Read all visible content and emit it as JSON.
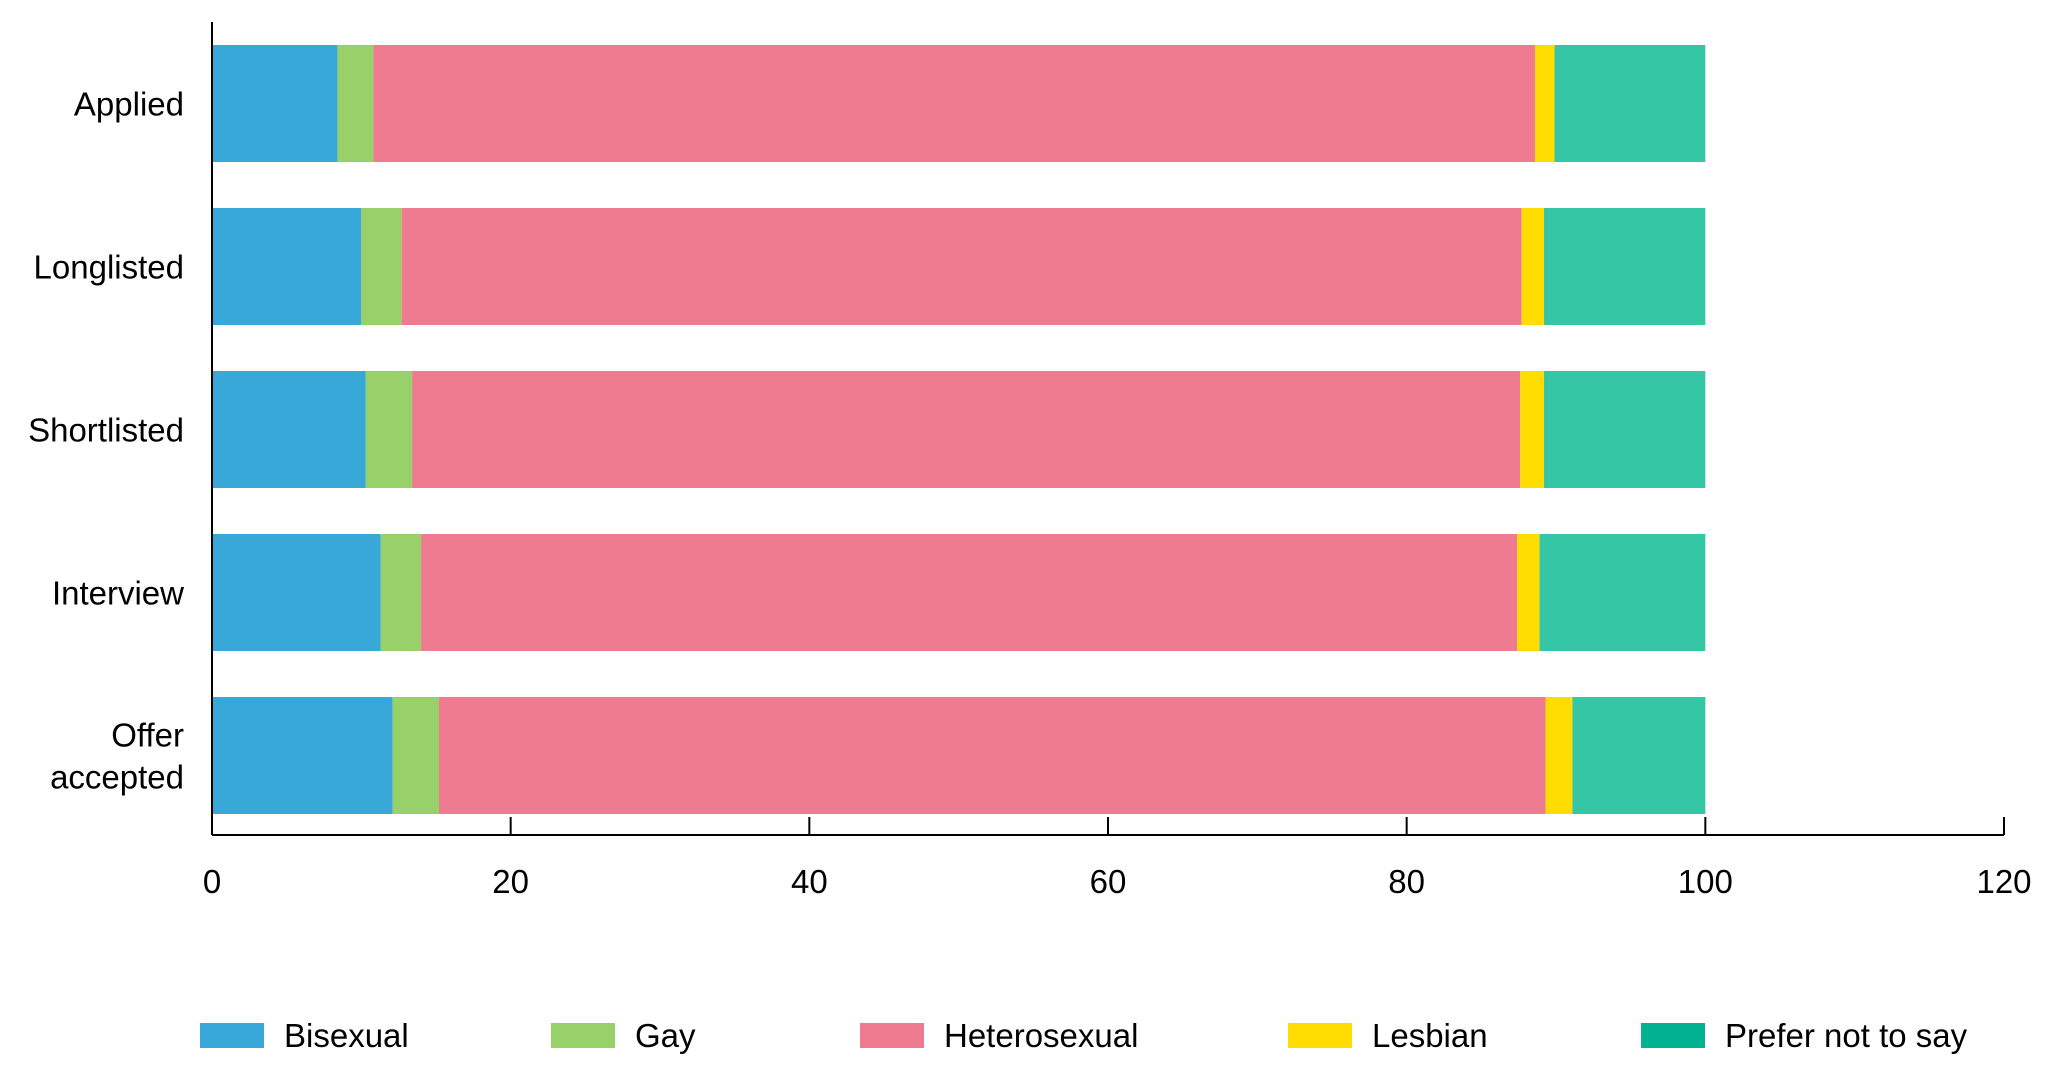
{
  "chart_data": {
    "type": "bar",
    "orientation": "horizontal",
    "stacked": true,
    "categories": [
      "Applied",
      "Longlisted",
      "Shortlisted",
      "Interview",
      "Offer accepted"
    ],
    "category_display": [
      [
        "Applied"
      ],
      [
        "Longlisted"
      ],
      [
        "Shortlisted"
      ],
      [
        "Interview"
      ],
      [
        "Offer",
        "accepted"
      ]
    ],
    "series": [
      {
        "name": "Bisexual",
        "color": "#38a8d8",
        "values": [
          8.4,
          10.0,
          10.3,
          11.3,
          12.1
        ]
      },
      {
        "name": "Gay",
        "color": "#98d06a",
        "values": [
          2.4,
          2.7,
          3.1,
          2.7,
          3.1
        ]
      },
      {
        "name": "Heterosexual",
        "color": "#ef7b90",
        "values": [
          77.8,
          75.0,
          74.2,
          73.4,
          74.1
        ]
      },
      {
        "name": "Lesbian",
        "color": "#ffdd00",
        "values": [
          1.3,
          1.5,
          1.6,
          1.5,
          1.8
        ]
      },
      {
        "name": "Prefer not to say",
        "color": "#00b28f",
        "display_color": "#35c6a6",
        "values": [
          10.1,
          10.8,
          10.8,
          11.1,
          8.9
        ]
      }
    ],
    "xlim": [
      0,
      120
    ],
    "xticks": [
      "0",
      "20",
      "40",
      "60",
      "80",
      "100",
      "120"
    ],
    "xlabel": "",
    "ylabel": "",
    "title": "",
    "grid": false,
    "legend_position": "bottom"
  }
}
